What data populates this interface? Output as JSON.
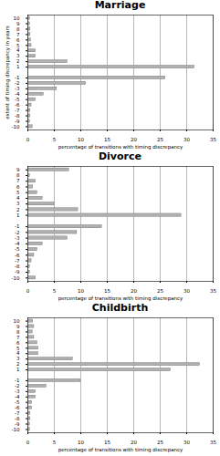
{
  "chart_data": [
    {
      "type": "bar",
      "orientation": "horizontal",
      "title": "Marriage",
      "categories": [
        10,
        9,
        8,
        7,
        6,
        5,
        4,
        3,
        2,
        1,
        -1,
        -2,
        -3,
        -4,
        -5,
        -6,
        -7,
        -8,
        -9,
        -10
      ],
      "values": [
        0.4,
        0.4,
        0.5,
        0.5,
        0.6,
        0.7,
        1.5,
        1.5,
        7.5,
        31.5,
        26.0,
        11.0,
        5.5,
        3.0,
        1.5,
        0.7,
        0.5,
        0.5,
        0.4,
        0.9
      ],
      "ylabel": "extent of timing discrepancy in years",
      "xlabel": "percentage of transitions with timing discrepancy",
      "xlim": [
        0,
        35
      ],
      "xticks": [
        0,
        5,
        10,
        15,
        20,
        25,
        30,
        35
      ],
      "ylim": [
        -10.6,
        10.6
      ],
      "yticks": [
        10,
        9,
        8,
        7,
        6,
        5,
        4,
        3,
        2,
        1,
        -1,
        -2,
        -3,
        -4,
        -5,
        -6,
        -7,
        -8,
        -9,
        -10
      ],
      "color": "#b0b0b0",
      "grid": true
    },
    {
      "type": "bar",
      "orientation": "horizontal",
      "title": "Divorce",
      "categories": [
        9,
        8,
        7,
        6,
        5,
        4,
        3,
        2,
        1,
        -1,
        -2,
        -3,
        -4,
        -5,
        -6,
        -7,
        -8,
        -9,
        -10
      ],
      "values": [
        7.8,
        0.4,
        1.5,
        1.0,
        1.8,
        2.8,
        5.0,
        9.5,
        29.0,
        14.0,
        9.3,
        7.5,
        2.8,
        1.8,
        1.2,
        0.7,
        0.4,
        0.4,
        1.5
      ],
      "xlabel": "percentage of transitions with timing discrepancy",
      "xlim": [
        0,
        35
      ],
      "xticks": [
        0,
        5,
        10,
        15,
        20,
        25,
        30,
        35
      ],
      "ylim": [
        -10.6,
        9.6
      ],
      "yticks": [
        9,
        8,
        7,
        6,
        5,
        4,
        3,
        2,
        1,
        -1,
        -2,
        -3,
        -4,
        -5,
        -6,
        -7,
        -8,
        -9,
        -10
      ],
      "color": "#b0b0b0",
      "grid": true
    },
    {
      "type": "bar",
      "orientation": "horizontal",
      "title": "Childbirth",
      "categories": [
        10,
        9,
        8,
        7,
        6,
        5,
        4,
        3,
        2,
        1,
        -1,
        -2,
        -3,
        -4,
        -5,
        -6,
        -7,
        -8,
        -9,
        -10
      ],
      "values": [
        1.0,
        1.2,
        0.9,
        1.2,
        1.8,
        2.0,
        2.0,
        8.5,
        32.5,
        27.0,
        10.0,
        3.5,
        1.5,
        1.5,
        0.8,
        0.8,
        0.5,
        0.5,
        0.4,
        0.4
      ],
      "xlabel": "percentage of transitions with timing discrepancy",
      "xlim": [
        0,
        35
      ],
      "xticks": [
        0,
        5,
        10,
        15,
        20,
        25,
        30,
        35
      ],
      "ylim": [
        -10.6,
        10.6
      ],
      "yticks": [
        10,
        9,
        8,
        7,
        6,
        5,
        4,
        3,
        2,
        1,
        -1,
        -2,
        -3,
        -4,
        -5,
        -6,
        -7,
        -8,
        -9,
        -10
      ],
      "color": "#b0b0b0",
      "grid": true
    }
  ]
}
